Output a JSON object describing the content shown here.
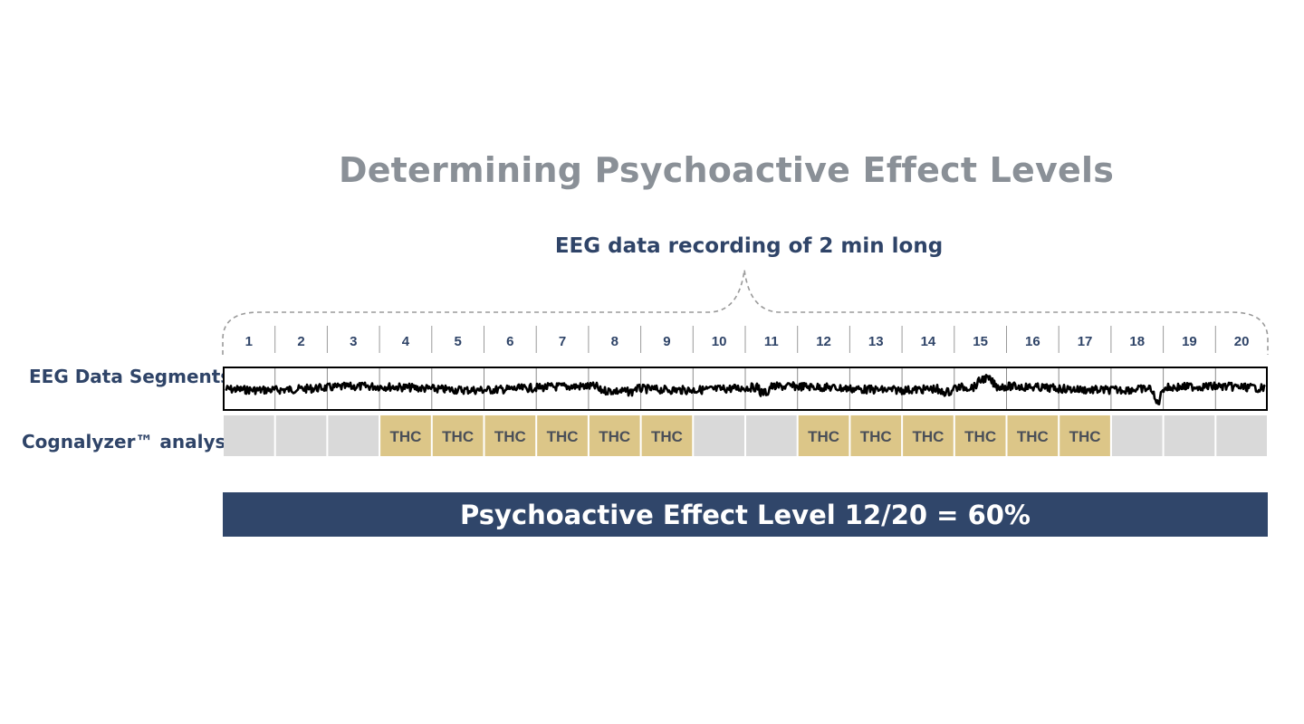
{
  "title": "Determining Psychoactive Effect Levels",
  "subtitle": "EEG data recording of 2 min long",
  "rows": {
    "eeg_label": "EEG Data Segments",
    "analysis_label": "Cognalyzer™ analysis"
  },
  "segments": [
    "1",
    "2",
    "3",
    "4",
    "5",
    "6",
    "7",
    "8",
    "9",
    "10",
    "11",
    "12",
    "13",
    "14",
    "15",
    "16",
    "17",
    "18",
    "19",
    "20"
  ],
  "analysis": [
    "",
    "",
    "",
    "THC",
    "THC",
    "THC",
    "THC",
    "THC",
    "THC",
    "",
    "",
    "THC",
    "THC",
    "THC",
    "THC",
    "THC",
    "THC",
    "",
    "",
    ""
  ],
  "result": "Psychoactive Effect Level 12/20 = 60%",
  "colors": {
    "thc_cell": "#dcc688",
    "empty_cell": "#d9d9d9",
    "banner": "#30466a",
    "label": "#2f4468",
    "title": "#8a9097"
  }
}
